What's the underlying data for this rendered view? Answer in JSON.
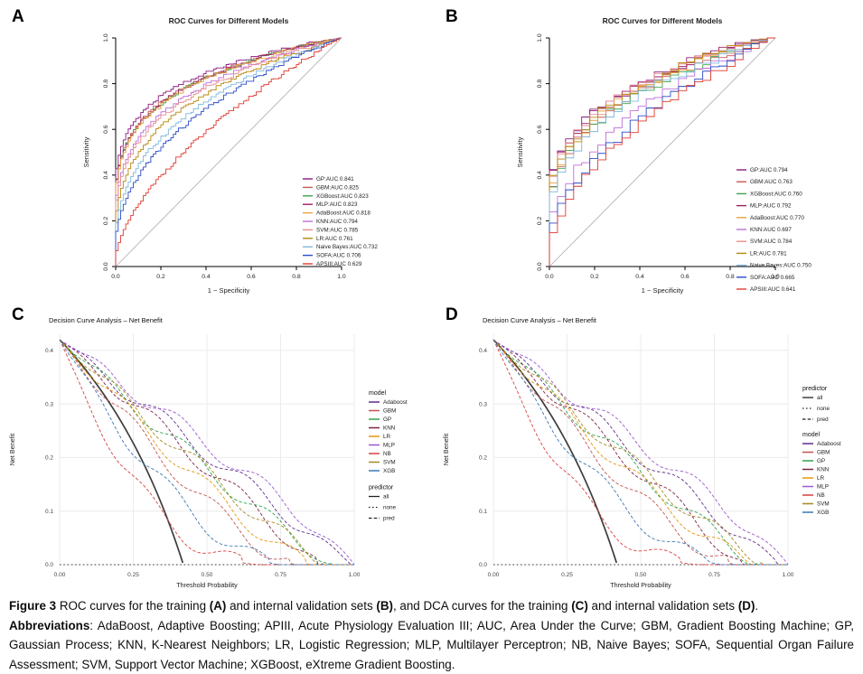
{
  "panels": {
    "a_label": "A",
    "b_label": "B",
    "c_label": "C",
    "d_label": "D"
  },
  "chart_data": [
    {
      "panel": "A",
      "type": "line",
      "kind": "roc",
      "title": "ROC Curves for Different Models",
      "xlabel": "1 − Specificity",
      "ylabel": "Sensitivity",
      "xlim": [
        0,
        1
      ],
      "ylim": [
        0,
        1
      ],
      "xticks": [
        "0.0",
        "0.2",
        "0.4",
        "0.6",
        "0.8",
        "1.0"
      ],
      "yticks": [
        "0.0",
        "0.2",
        "0.4",
        "0.6",
        "0.8",
        "1.0"
      ],
      "reference_line": "diagonal",
      "grid": false,
      "legend_position": "inside-right-lower",
      "series": [
        {
          "name": "GP",
          "auc": 0.841,
          "color": "#8B1A7E",
          "legend_label": "GP:AUC 0.841"
        },
        {
          "name": "GBM",
          "auc": 0.825,
          "color": "#C85A54",
          "legend_label": "GBM:AUC 0.825"
        },
        {
          "name": "XGBoost",
          "auc": 0.823,
          "color": "#3FA34D",
          "legend_label": "XGBoost:AUC 0.823"
        },
        {
          "name": "MLP",
          "auc": 0.823,
          "color": "#9E1F63",
          "legend_label": "MLP:AUC 0.823"
        },
        {
          "name": "AdaBoost",
          "auc": 0.818,
          "color": "#E6A23C",
          "legend_label": "AdaBoost:AUC 0.818"
        },
        {
          "name": "KNN",
          "auc": 0.794,
          "color": "#BF6FD8",
          "legend_label": "KNN:AUC 0.794"
        },
        {
          "name": "SVM",
          "auc": 0.785,
          "color": "#E98C8C",
          "legend_label": "SVM:AUC 0.785"
        },
        {
          "name": "LR",
          "auc": 0.761,
          "color": "#B8860B",
          "legend_label": "LR:AUC 0.761"
        },
        {
          "name": "Naive Bayes",
          "auc": 0.732,
          "color": "#7FB8DE",
          "legend_label": "Naive Bayes:AUC 0.732"
        },
        {
          "name": "SOFA",
          "auc": 0.706,
          "color": "#2B4BC8",
          "legend_label": "SOFA:AUC 0.706"
        },
        {
          "name": "APSIII",
          "auc": 0.629,
          "color": "#E03A2F",
          "legend_label": "APSIII:AUC 0.629"
        }
      ]
    },
    {
      "panel": "B",
      "type": "line",
      "kind": "roc",
      "title": "ROC Curves for Different Models",
      "xlabel": "1 − Specificity",
      "ylabel": "Sensitivity",
      "xlim": [
        0,
        1
      ],
      "ylim": [
        0,
        1
      ],
      "xticks": [
        "0.0",
        "0.2",
        "0.4",
        "0.6",
        "0.8",
        "1.0"
      ],
      "yticks": [
        "0.0",
        "0.2",
        "0.4",
        "0.6",
        "0.8",
        "1.0"
      ],
      "reference_line": "diagonal",
      "grid": false,
      "legend_position": "inside-right-middle",
      "series": [
        {
          "name": "GP",
          "auc": 0.794,
          "color": "#8B1A7E",
          "legend_label": "GP:AUC 0.794"
        },
        {
          "name": "GBM",
          "auc": 0.763,
          "color": "#C85A54",
          "legend_label": "GBM:AUC 0.763"
        },
        {
          "name": "XGBoost",
          "auc": 0.76,
          "color": "#3FA34D",
          "legend_label": "XGBoost:AUC 0.760"
        },
        {
          "name": "MLP",
          "auc": 0.792,
          "color": "#9E1F63",
          "legend_label": "MLP:AUC 0.792"
        },
        {
          "name": "AdaBoost",
          "auc": 0.77,
          "color": "#E6A23C",
          "legend_label": "AdaBoost:AUC 0.770"
        },
        {
          "name": "KNN",
          "auc": 0.697,
          "color": "#BF6FD8",
          "legend_label": "KNN:AUC 0.697"
        },
        {
          "name": "SVM",
          "auc": 0.784,
          "color": "#E98C8C",
          "legend_label": "SVM:AUC 0.784"
        },
        {
          "name": "LR",
          "auc": 0.781,
          "color": "#B8860B",
          "legend_label": "LR:AUC 0.781"
        },
        {
          "name": "Naive Bayes",
          "auc": 0.75,
          "color": "#7FB8DE",
          "legend_label": "Naive Bayes:AUC 0.750"
        },
        {
          "name": "SOFA",
          "auc": 0.665,
          "color": "#2B4BC8",
          "legend_label": "SOFA:AUC 0.665"
        },
        {
          "name": "APSIII",
          "auc": 0.641,
          "color": "#E03A2F",
          "legend_label": "APSIII:AUC 0.641"
        }
      ]
    },
    {
      "panel": "C",
      "type": "line",
      "kind": "dca",
      "title": "Decision Curve Analysis – Net Benefit",
      "xlabel": "Threshold Probability",
      "ylabel": "Net Benefit",
      "xticks": [
        "0.00",
        "0.25",
        "0.50",
        "0.75",
        "1.00"
      ],
      "yticks": [
        "0.0",
        "0.1",
        "0.2",
        "0.3",
        "0.4"
      ],
      "xlim": [
        0,
        1
      ],
      "ylim": [
        0,
        0.43
      ],
      "grid": true,
      "prevalence": 0.42,
      "legend_order": [
        "model",
        "predictor"
      ],
      "legend_titles": {
        "model": "model",
        "predictor": "predictor"
      },
      "models": [
        {
          "name": "Adaboost",
          "color": "#5E2D8A",
          "zero": 0.99,
          "shape": 1.0
        },
        {
          "name": "GBM",
          "color": "#C0544F",
          "zero": 0.8,
          "shape": 1.3
        },
        {
          "name": "GP",
          "color": "#2FA44E",
          "zero": 0.93,
          "shape": 1.1
        },
        {
          "name": "KNN",
          "color": "#7E2248",
          "zero": 0.88,
          "shape": 1.0
        },
        {
          "name": "LR",
          "color": "#E8960C",
          "zero": 0.85,
          "shape": 1.2
        },
        {
          "name": "MLP",
          "color": "#9B59D0",
          "zero": 1.0,
          "shape": 0.9
        },
        {
          "name": "NB",
          "color": "#D94040",
          "zero": 0.7,
          "shape": 2.2
        },
        {
          "name": "SVM",
          "color": "#A58A1F",
          "zero": 0.9,
          "shape": 1.1
        },
        {
          "name": "XGB",
          "color": "#3B78B5",
          "zero": 0.75,
          "shape": 1.6
        }
      ],
      "predictors": [
        {
          "name": "all",
          "linetype": "solid"
        },
        {
          "name": "none",
          "linetype": "dotted"
        },
        {
          "name": "pred",
          "linetype": "dashed"
        }
      ]
    },
    {
      "panel": "D",
      "type": "line",
      "kind": "dca",
      "title": "Decision Curve Analysis – Net Benefit",
      "xlabel": "Threshold Probability",
      "ylabel": "Net Benefit",
      "xticks": [
        "0.00",
        "0.25",
        "0.50",
        "0.75",
        "1.00"
      ],
      "yticks": [
        "0.0",
        "0.1",
        "0.2",
        "0.3",
        "0.4"
      ],
      "xlim": [
        0,
        1
      ],
      "ylim": [
        0,
        0.43
      ],
      "grid": true,
      "prevalence": 0.42,
      "legend_order": [
        "predictor",
        "model"
      ],
      "legend_titles": {
        "model": "model",
        "predictor": "predictor"
      },
      "models": [
        {
          "name": "Adaboost",
          "color": "#5E2D8A",
          "zero": 0.97,
          "shape": 1.0
        },
        {
          "name": "GBM",
          "color": "#C0544F",
          "zero": 0.82,
          "shape": 1.3
        },
        {
          "name": "GP",
          "color": "#2FA44E",
          "zero": 0.9,
          "shape": 1.1
        },
        {
          "name": "KNN",
          "color": "#7E2248",
          "zero": 0.85,
          "shape": 1.0
        },
        {
          "name": "LR",
          "color": "#E8960C",
          "zero": 0.88,
          "shape": 1.2
        },
        {
          "name": "MLP",
          "color": "#9B59D0",
          "zero": 1.0,
          "shape": 0.9
        },
        {
          "name": "NB",
          "color": "#D94040",
          "zero": 0.72,
          "shape": 2.2
        },
        {
          "name": "SVM",
          "color": "#A58A1F",
          "zero": 0.92,
          "shape": 1.1
        },
        {
          "name": "XGB",
          "color": "#3B78B5",
          "zero": 0.78,
          "shape": 1.6
        }
      ],
      "predictors": [
        {
          "name": "all",
          "linetype": "solid"
        },
        {
          "name": "none",
          "linetype": "dotted"
        },
        {
          "name": "pred",
          "linetype": "dashed"
        }
      ]
    }
  ],
  "caption": {
    "lines": [
      {
        "parts": [
          {
            "text": "Figure 3",
            "bold": true
          },
          {
            "text": " ROC curves for the training ",
            "bold": false
          },
          {
            "text": "(A)",
            "bold": true
          },
          {
            "text": " and internal validation sets ",
            "bold": false
          },
          {
            "text": "(B)",
            "bold": true
          },
          {
            "text": ", and DCA curves for the training ",
            "bold": false
          },
          {
            "text": "(C)",
            "bold": true
          },
          {
            "text": " and internal validation sets ",
            "bold": false
          },
          {
            "text": "(D)",
            "bold": true
          },
          {
            "text": ".",
            "bold": false
          }
        ]
      },
      {
        "parts": [
          {
            "text": "Abbreviations",
            "bold": true
          },
          {
            "text": ": AdaBoost, Adaptive Boosting; APIII, Acute Physiology Evaluation III; AUC, Area Under the Curve; GBM, Gradient Boosting Machine; GP, Gaussian Process; KNN, K-Nearest Neighbors; LR, Logistic Regression; MLP, Multilayer Perceptron; NB, Naive Bayes; SOFA, Sequential Organ Failure Assessment; SVM, Support Vector Machine; XGBoost, eXtreme Gradient Boosting.",
            "bold": false
          }
        ]
      }
    ]
  }
}
